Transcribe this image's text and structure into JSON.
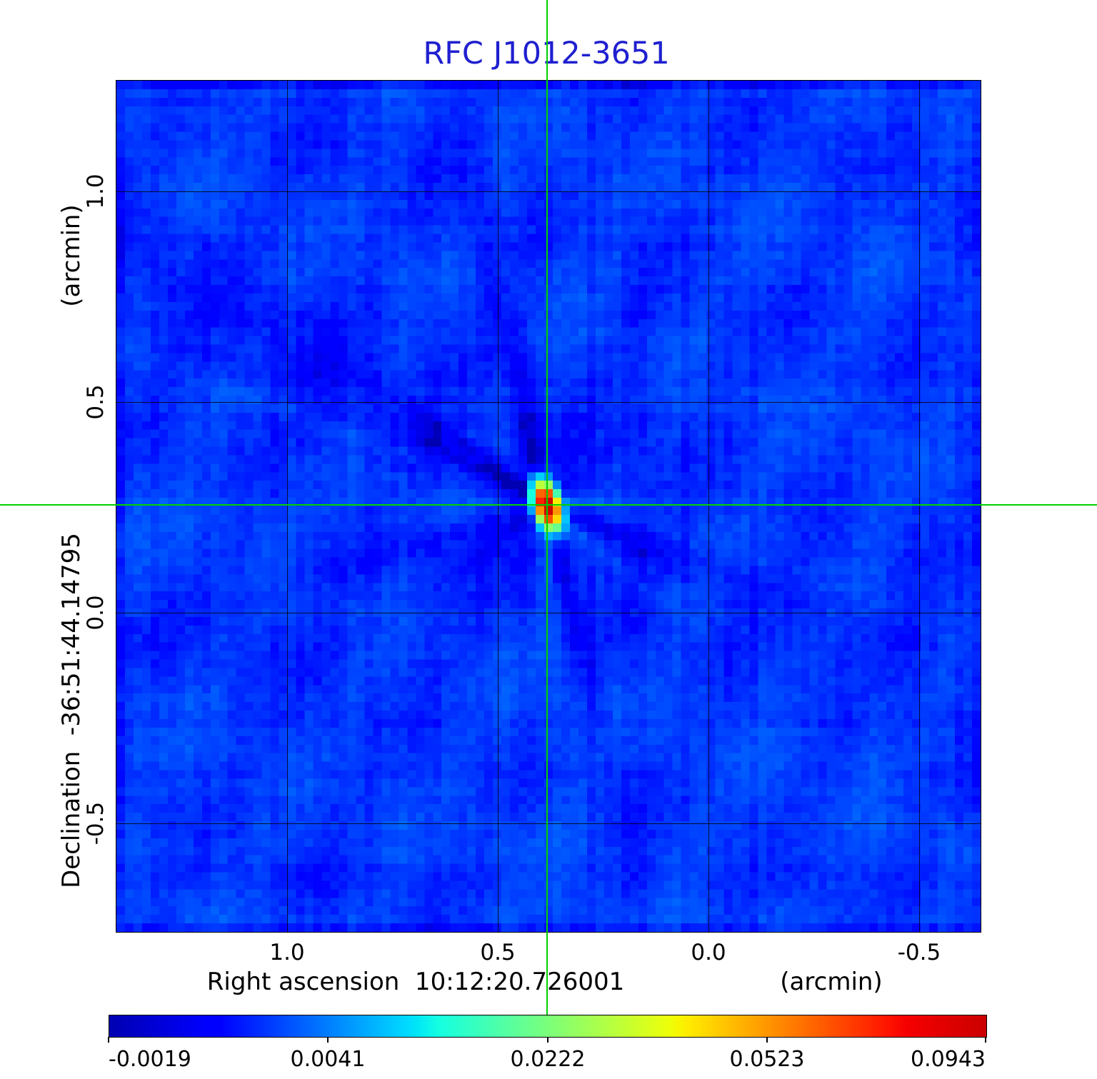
{
  "title": {
    "text": "RFC J1012-3651",
    "color": "#1f1fd0"
  },
  "axes": {
    "y_label": "Declination  -36:51:44.14795",
    "y_unit": "(arcmin)",
    "x_label": "Right ascension  10:12:20.726001",
    "x_unit": "(arcmin)",
    "x_tick_labels": [
      "1.0",
      "0.5",
      "0.0",
      "-0.5"
    ],
    "y_tick_labels": [
      "1.0",
      "0.5",
      "0.0",
      "-0.5"
    ]
  },
  "colorbar": {
    "tick_labels": [
      "-0.0019",
      "0.0041",
      "0.0222",
      "0.0523",
      "0.0943"
    ]
  },
  "crosshair": {
    "color": "#00d000"
  },
  "chart_data": {
    "type": "heatmap",
    "title": "RFC J1012-3651",
    "xlabel": "Right ascension  10:12:20.726001 (arcmin)",
    "ylabel": "Declination  -36:51:44.14795 (arcmin)",
    "x_range_arcmin": [
      1.405,
      -0.646
    ],
    "y_range_arcmin": [
      1.262,
      -0.758
    ],
    "x_tick_values": [
      1.0,
      0.5,
      0.0,
      -0.5
    ],
    "y_tick_values": [
      1.0,
      0.5,
      0.0,
      -0.5
    ],
    "grid": true,
    "colormap": "jet",
    "color_scale": "sqrt",
    "vmin": -0.0019,
    "vmax": 0.0943,
    "colorbar_tick_values": [
      -0.0019,
      0.0041,
      0.0222,
      0.0523,
      0.0943
    ],
    "peak_source": {
      "ra_offset_arcmin": 0.383,
      "dec_offset_arcmin": 0.255,
      "peak_value": 0.0943
    },
    "crosshair_arcmin": {
      "ra_offset": 0.383,
      "dec_offset": 0.255
    },
    "render": {
      "nx": 101,
      "ny": 100,
      "seed": 42,
      "base": 0.0012,
      "cell_noise": 0.0006,
      "col_noise": 0.00045,
      "row_noise": 0.0003,
      "edge_drop": 0.0011,
      "bowl": {
        "amp": 0.0012,
        "sigma": 85
      },
      "source": {
        "peak": 0.115,
        "sigma_min": 10,
        "sigma_maj": 19,
        "tilt_deg": 18
      },
      "rays": [
        {
          "a": 103,
          "w": 13,
          "amp": -0.0034,
          "L": 300
        },
        {
          "a": 283,
          "w": 12,
          "amp": -0.003,
          "L": 260
        },
        {
          "a": 149,
          "w": 15,
          "amp": -0.002,
          "L": 750
        },
        {
          "a": 156,
          "w": 11,
          "amp": -0.0015,
          "L": 850
        },
        {
          "a": 143,
          "w": 10,
          "amp": -0.0013,
          "L": 500
        },
        {
          "a": 164,
          "w": 9,
          "amp": -0.0008,
          "L": 600
        },
        {
          "a": 339,
          "w": 13,
          "amp": -0.0019,
          "L": 650
        },
        {
          "a": 333,
          "w": 9,
          "amp": -0.0011,
          "L": 420
        },
        {
          "a": 197,
          "w": 13,
          "amp": -0.0012,
          "L": 520
        },
        {
          "a": 215,
          "w": 10,
          "amp": -0.0008,
          "L": 350
        },
        {
          "a": 41,
          "w": 11,
          "amp": -0.0009,
          "L": 350
        },
        {
          "a": 65,
          "w": 10,
          "amp": -0.0007,
          "L": 300
        },
        {
          "a": 180,
          "w": 18,
          "amp": 0.0011,
          "L": 380
        },
        {
          "a": 270,
          "w": 13,
          "amp": 0.001,
          "L": 430
        },
        {
          "a": 90,
          "w": 9,
          "amp": 0.0032,
          "L": 60
        },
        {
          "a": 270,
          "w": 10,
          "amp": 0.0045,
          "L": 75
        },
        {
          "a": 0,
          "w": 10,
          "amp": 0.003,
          "L": 65
        },
        {
          "a": 320,
          "w": 8,
          "amp": 0.0018,
          "L": 130
        },
        {
          "a": 160,
          "w": 6,
          "amp": 0.0013,
          "L": 260
        }
      ]
    }
  }
}
